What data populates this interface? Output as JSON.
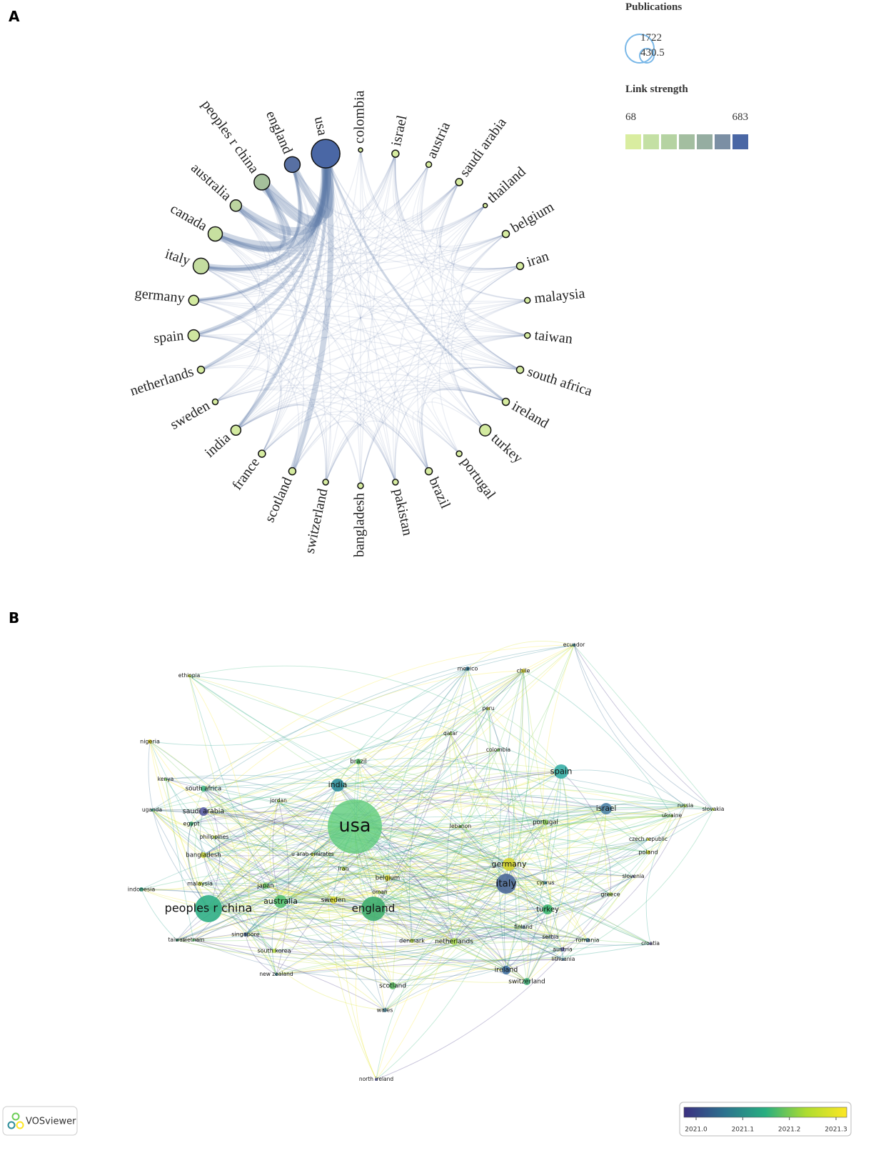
{
  "chart_data": [
    {
      "type": "chord-network",
      "panel_label": "A",
      "nodes": [
        "colombia",
        "israel",
        "austria",
        "saudi arabia",
        "thailand",
        "belgium",
        "iran",
        "malaysia",
        "taiwan",
        "south africa",
        "ireland",
        "turkey",
        "portugal",
        "brazil",
        "pakistan",
        "bangladesh",
        "switzerland",
        "scotland",
        "france",
        "india",
        "sweden",
        "netherlands",
        "spain",
        "germany",
        "italy",
        "canada",
        "australia",
        "peoples r china",
        "england",
        "usa"
      ],
      "node_colors": [
        "#d6eca0",
        "#d6eca0",
        "#d6eca0",
        "#d6eca0",
        "#d6eca0",
        "#d6eca0",
        "#d6eca0",
        "#d6eca0",
        "#d6eca0",
        "#d6eca0",
        "#d6eca0",
        "#d3eaa0",
        "#d6eca0",
        "#d6eca0",
        "#d6eca0",
        "#d6eca0",
        "#d6eca0",
        "#d6eca0",
        "#d6eca0",
        "#d3eaa0",
        "#d6eca0",
        "#d6eca0",
        "#cfe6a0",
        "#d3eaa0",
        "#c4dda0",
        "#c7e0a0",
        "#bcd5a0",
        "#a5c09b",
        "#5870a3",
        "#4a67a5"
      ],
      "link_color": "#5a77a5",
      "legend": {
        "size_title": "Publications",
        "size_values": [
          1722,
          430.5
        ],
        "size_color": "#7ab8e8",
        "color_title": "Link strength",
        "color_range": [
          68,
          683
        ],
        "colors": [
          "#d9eda0",
          "#c4e0a4",
          "#b5d3a2",
          "#a3bea0",
          "#95ada1",
          "#7b8fa4",
          "#4a67a5"
        ]
      }
    },
    {
      "type": "network",
      "panel_label": "B",
      "nodes": [
        "ecuador",
        "mexico",
        "chile",
        "ethiopia",
        "peru",
        "qatar",
        "colombia",
        "nigeria",
        "brazil",
        "spain",
        "kenya",
        "india",
        "south africa",
        "jordan",
        "uganda",
        "saudi arabia",
        "israel",
        "russia",
        "slovakia",
        "ukraine",
        "egypt",
        "usa",
        "lebanon",
        "portugal",
        "philippines",
        "czech republic",
        "bangladesh",
        "poland",
        "u arab emirates",
        "iran",
        "germany",
        "belgium",
        "slovenia",
        "indonesia",
        "malaysia",
        "japan",
        "italy",
        "cyprus",
        "oman",
        "greece",
        "sweden",
        "australia",
        "peoples r china",
        "england",
        "turkey",
        "finland",
        "taiwan",
        "vietnam",
        "singapore",
        "denmark",
        "netherlands",
        "serbia",
        "romania",
        "croatia",
        "austria",
        "south korea",
        "lithuania",
        "ireland",
        "new zealand",
        "switzerland",
        "scotland",
        "wales",
        "north ireland"
      ],
      "node_colors": [
        "#3d8fa0",
        "#3a7fa0",
        "#e0dc3a",
        "#cfe04a",
        "#cddc40",
        "#9fd45a",
        "#7dce62",
        "#e6d82e",
        "#58c36a",
        "#37aea6",
        "#7fcd5f",
        "#2d8d9a",
        "#40b47f",
        "#9fd34f",
        "#43a88c",
        "#5b5ea6",
        "#4d82a6",
        "#a8d65a",
        "#c2dc52",
        "#9bd35e",
        "#40b07a",
        "#5dcc7b",
        "#7fcd62",
        "#8fd160",
        "#bede46",
        "#d8dd3c",
        "#d0e040",
        "#d6dc3a",
        "#c5dc48",
        "#b5d94c",
        "#d6d52e",
        "#d8d838",
        "#8f8fb8",
        "#3aab8a",
        "#c8dc45",
        "#6cc766",
        "#4b6898",
        "#3a8fa8",
        "#a7d656",
        "#a8d45a",
        "#dcdc35",
        "#58c271",
        "#2fae85",
        "#3fae6e",
        "#3cb670",
        "#6d8dad",
        "#4aa98a",
        "#6cc37a",
        "#4f6fa5",
        "#b6d94a",
        "#a7d64f",
        "#8aa0b8",
        "#4f86a5",
        "#8d7fc0",
        "#6c6fb3",
        "#b4d84a",
        "#5f8cb0",
        "#3f6fa0",
        "#3d8aa0",
        "#43b07a",
        "#62c468",
        "#5a9ab0",
        "#6f6fb8"
      ],
      "edge_colors": [
        "#fde725",
        "#d8e219",
        "#b5de2b",
        "#6ece58",
        "#35b779",
        "#1f9e89",
        "#26828e",
        "#31688e",
        "#443983"
      ],
      "colorbar": {
        "colors": [
          "#3b2f80",
          "#2c728e",
          "#28ae80",
          "#addc30",
          "#fde725"
        ],
        "ticks": [
          {
            "value": 2021.0,
            "label": "2021.0"
          },
          {
            "value": 2021.1,
            "label": "2021.1"
          },
          {
            "value": 2021.2,
            "label": "2021.2"
          },
          {
            "value": 2021.3,
            "label": "2021.3"
          }
        ]
      },
      "logo": "VOSviewer"
    }
  ]
}
